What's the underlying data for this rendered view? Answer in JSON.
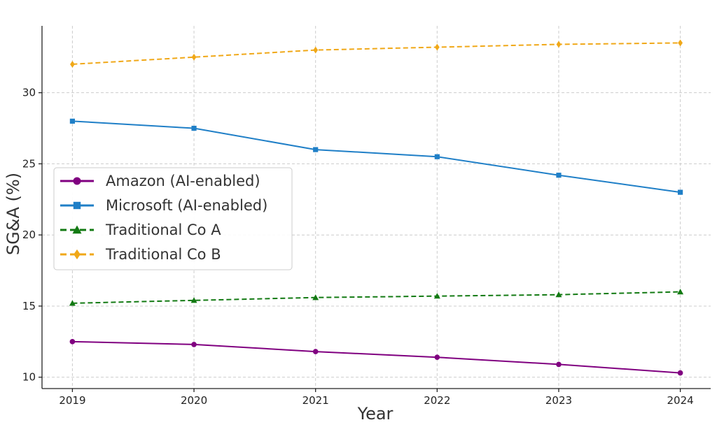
{
  "chart_data": {
    "type": "line",
    "title": "",
    "xlabel": "Year",
    "ylabel": "SG&A (%)",
    "x": [
      2019,
      2020,
      2021,
      2022,
      2023,
      2024
    ],
    "x_tick_labels": [
      "2019",
      "2020",
      "2021",
      "2022",
      "2023",
      "2024"
    ],
    "y_ticks": [
      10,
      15,
      20,
      25,
      30
    ],
    "y_tick_labels": [
      "10",
      "15",
      "20",
      "25",
      "30"
    ],
    "xlim": [
      2018.75,
      2024.25
    ],
    "ylim": [
      9.2,
      34.7
    ],
    "grid": true,
    "legend_position": "center-left",
    "series": [
      {
        "name": "Amazon (AI-enabled)",
        "values": [
          12.5,
          12.3,
          11.8,
          11.4,
          10.9,
          10.3
        ],
        "color": "#800080",
        "marker": "circle",
        "linestyle": "solid"
      },
      {
        "name": "Microsoft (AI-enabled)",
        "values": [
          28.0,
          27.5,
          26.0,
          25.5,
          24.2,
          23.0
        ],
        "color": "#1f7fc7",
        "marker": "square",
        "linestyle": "solid"
      },
      {
        "name": "Traditional Co A",
        "values": [
          15.2,
          15.4,
          15.6,
          15.7,
          15.8,
          16.0
        ],
        "color": "#137a13",
        "marker": "triangle",
        "linestyle": "dashed"
      },
      {
        "name": "Traditional Co B",
        "values": [
          32.0,
          32.5,
          33.0,
          33.2,
          33.4,
          33.5
        ],
        "color": "#f0a818",
        "marker": "diamond",
        "linestyle": "dashed"
      }
    ]
  }
}
